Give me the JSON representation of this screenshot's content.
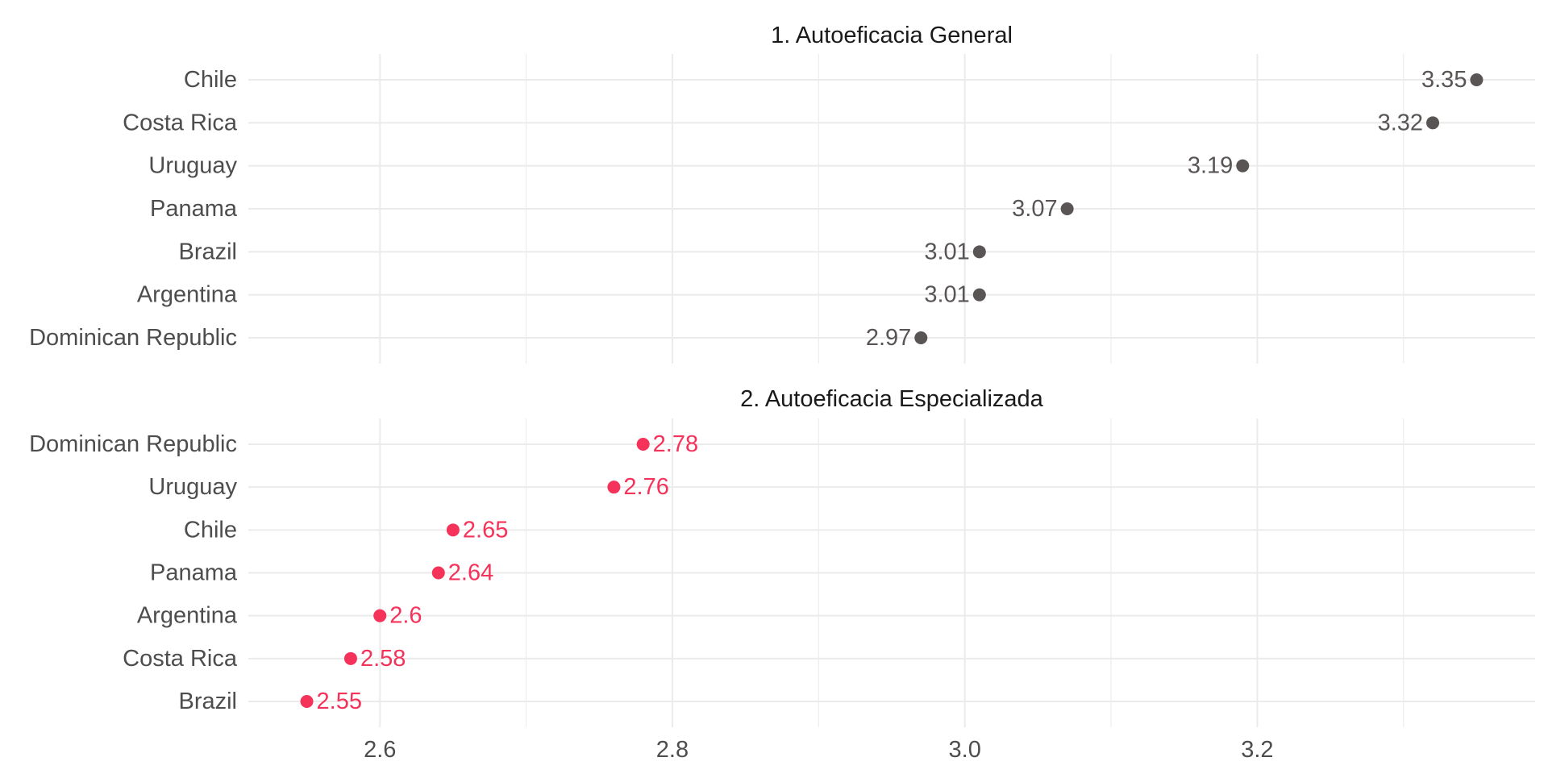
{
  "chart_data": {
    "type": "scatter",
    "subtype": "dot-plot (faceted, horizontal)",
    "xlabel": "",
    "ylabel": "",
    "xlim": [
      2.51,
      3.39
    ],
    "x_major_ticks": [
      2.6,
      2.8,
      3.0,
      3.2
    ],
    "x_tick_labels": [
      "2.6",
      "2.8",
      "3.0",
      "3.2"
    ],
    "x_minor_ticks": [
      2.7,
      2.9,
      3.1,
      3.3
    ],
    "grid": true,
    "legend": "none",
    "facets": [
      {
        "title": "1. Autoeficacia General",
        "color": "#5a5555",
        "label_side": "left",
        "categories": [
          "Chile",
          "Costa Rica",
          "Uruguay",
          "Panama",
          "Brazil",
          "Argentina",
          "Dominican Republic"
        ],
        "values": [
          3.35,
          3.32,
          3.19,
          3.07,
          3.01,
          3.01,
          2.97
        ],
        "labels": [
          "3.35",
          "3.32",
          "3.19",
          "3.07",
          "3.01",
          "3.01",
          "2.97"
        ]
      },
      {
        "title": "2. Autoeficacia Especializada",
        "color": "#f5325a",
        "label_side": "right",
        "categories": [
          "Dominican Republic",
          "Uruguay",
          "Chile",
          "Panama",
          "Argentina",
          "Costa Rica",
          "Brazil"
        ],
        "values": [
          2.78,
          2.76,
          2.65,
          2.64,
          2.6,
          2.58,
          2.55
        ],
        "labels": [
          "2.78",
          "2.76",
          "2.65",
          "2.64",
          "2.6",
          "2.58",
          "2.55"
        ]
      }
    ]
  }
}
